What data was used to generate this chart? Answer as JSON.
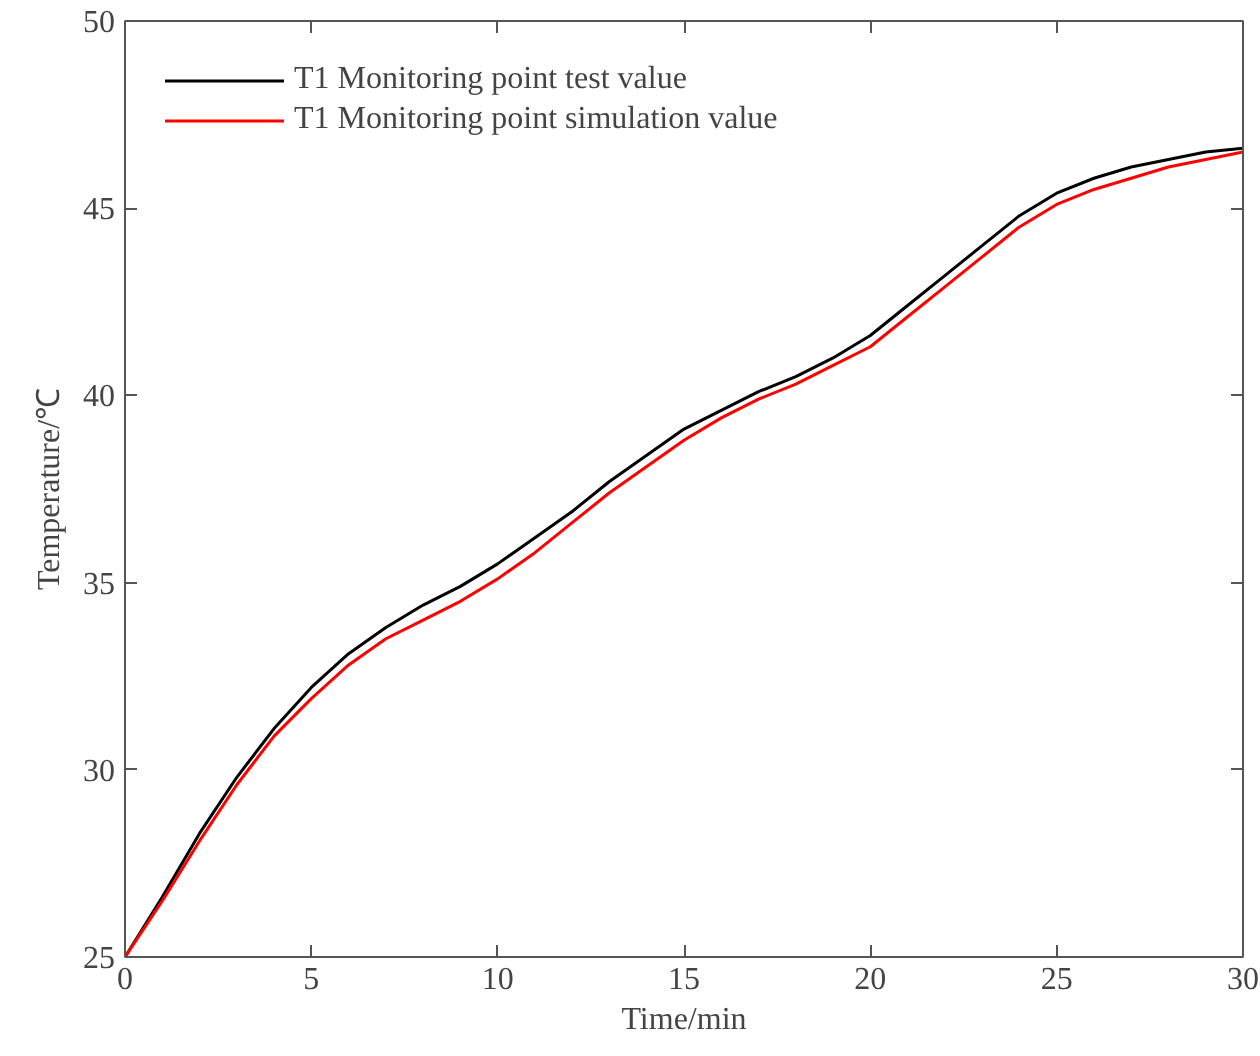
{
  "chart_data": {
    "type": "line",
    "xlabel": "Time/min",
    "ylabel": "Temperature/℃",
    "x": [
      0,
      1,
      2,
      3,
      4,
      5,
      6,
      7,
      8,
      9,
      10,
      11,
      12,
      13,
      14,
      15,
      16,
      17,
      18,
      19,
      20,
      21,
      22,
      23,
      24,
      25,
      26,
      27,
      28,
      29,
      30
    ],
    "series": [
      {
        "name": "T1 Monitoring point test value",
        "color": "#000000",
        "values": [
          25,
          26.6,
          28.3,
          29.8,
          31.1,
          32.2,
          33.1,
          33.8,
          34.4,
          34.9,
          35.5,
          36.2,
          36.9,
          37.7,
          38.4,
          39.1,
          39.6,
          40.1,
          40.5,
          41.0,
          41.6,
          42.4,
          43.2,
          44.0,
          44.8,
          45.4,
          45.8,
          46.1,
          46.3,
          46.5,
          46.6
        ]
      },
      {
        "name": "T1 Monitoring point simulation value",
        "color": "#ff0000",
        "values": [
          25,
          26.5,
          28.1,
          29.6,
          30.9,
          31.9,
          32.8,
          33.5,
          34.0,
          34.5,
          35.1,
          35.8,
          36.6,
          37.4,
          38.1,
          38.8,
          39.4,
          39.9,
          40.3,
          40.8,
          41.3,
          42.1,
          42.9,
          43.7,
          44.5,
          45.1,
          45.5,
          45.8,
          46.1,
          46.3,
          46.5
        ]
      }
    ],
    "xlim": [
      0,
      30
    ],
    "ylim": [
      25,
      50
    ],
    "xticks": [
      0,
      5,
      10,
      15,
      20,
      25,
      30
    ],
    "yticks": [
      25,
      30,
      35,
      40,
      45,
      50
    ],
    "grid": false,
    "legend": "top left",
    "marker": "none",
    "line_style": "solid"
  }
}
